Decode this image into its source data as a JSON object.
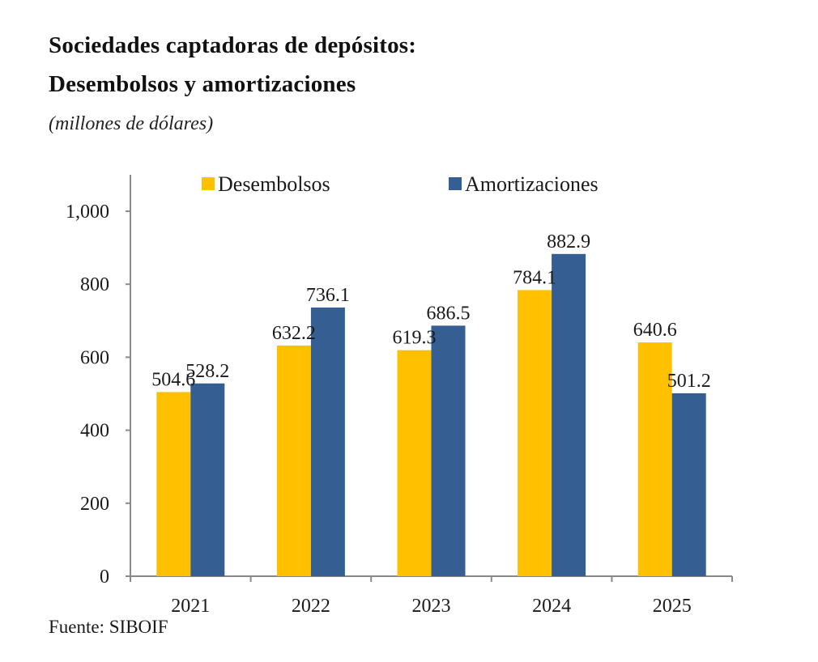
{
  "chart_data": {
    "type": "bar",
    "title": "Sociedades captadoras de depósitos:",
    "title_line2": "Desembolsos y amortizaciones",
    "subtitle": "(millones de dólares)",
    "xlabel": "",
    "ylabel": "",
    "categories": [
      "2021",
      "2022",
      "2023",
      "2024",
      "2025"
    ],
    "series": [
      {
        "name": "Desembolsos",
        "color": "#FFC000",
        "values": [
          504.6,
          632.2,
          619.3,
          784.1,
          640.6
        ],
        "labels": [
          "504.6",
          "632.2",
          "619.3",
          "784.1",
          "640.6"
        ]
      },
      {
        "name": "Amortizaciones",
        "color": "#355E92",
        "values": [
          528.2,
          736.1,
          686.5,
          882.9,
          501.2
        ],
        "labels": [
          "528.2",
          "736.1",
          "686.5",
          "882.9",
          "501.2"
        ]
      }
    ],
    "ylim": [
      0,
      1100
    ],
    "yticks": [
      0,
      200,
      400,
      600,
      800,
      1000
    ],
    "ytick_labels": [
      "0",
      "200",
      "400",
      "600",
      "800",
      "1,000"
    ],
    "grid": false,
    "legend_position": "top-center",
    "source": "Fuente:  SIBOIF"
  }
}
